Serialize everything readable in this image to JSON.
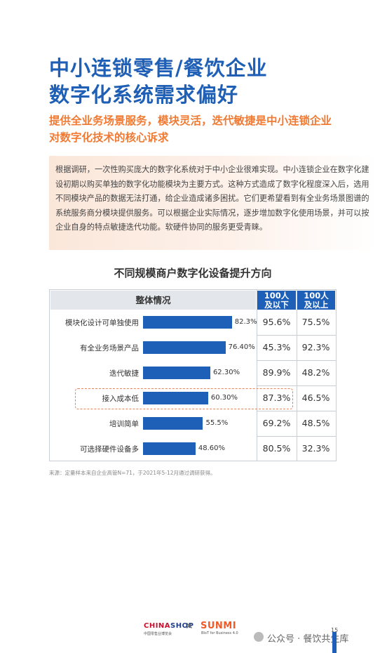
{
  "title": {
    "line1": "中小连锁零售/餐饮企业",
    "line2": "数字化系统需求偏好"
  },
  "subtitle": {
    "line1": "提供全业务场景服务，模块灵活，迭代敏捷是中小连锁企业",
    "line2": "对数字化技术的核心诉求"
  },
  "intro": "根据调研，一次性购买庞大的数字化系统对于中小企业很难实现。中小连锁企业在数字化建设初期以购买单独的数字化功能模块为主要方式。这种方式造成了数字化程度深入后，选用不同模块产品的数据无法打通，给企业造成诸多困扰。它们更希望看到有全业务场景图谱的系统服务商分模块提供服务。可以根据企业实际情况，逐步增加数字化使用场景，并可以按企业自身的特点敏捷迭代功能。软硬件协同的服务更受青睐。",
  "chart_title": "不同规模商户数字化设备提升方向",
  "chart_data": {
    "type": "bar",
    "header_overall": "整体情况",
    "header_col1": {
      "line1": "100人",
      "line2": "及以下"
    },
    "header_col2": {
      "line1": "100人",
      "line2": "及以上"
    },
    "categories": [
      "模块化设计可单独使用",
      "有全业务场景产品",
      "迭代敏捷",
      "接入成本低",
      "培训简单",
      "可选择硬件设备多"
    ],
    "values": [
      82.3,
      76.4,
      62.3,
      60.3,
      55.5,
      48.6
    ],
    "value_labels": [
      "82.3%",
      "76.40%",
      "62.30%",
      "60.30%",
      "55.5%",
      "48.60%"
    ],
    "col1": [
      "95.6%",
      "45.3%",
      "89.9%",
      "87.3%",
      "69.2%",
      "80.5%"
    ],
    "col2": [
      "75.5%",
      "92.3%",
      "48.2%",
      "46.5%",
      "48.5%",
      "32.3%"
    ],
    "highlight_index": 3,
    "bar_color": "#1e60b8"
  },
  "source": "来源：定量样本来自企业高管N=71，于2021年5-12月通过调研获得。",
  "footer": {
    "logo1_a": "CHINA",
    "logo1_b": "SHOP",
    "logo1_sub": "中国零售业博览会",
    "times": "✕",
    "logo2": "SUNMI",
    "logo2_sub": "BIoT for Business 4.0",
    "watermark": "公众号 · 餐饮共生库",
    "page": "15"
  }
}
